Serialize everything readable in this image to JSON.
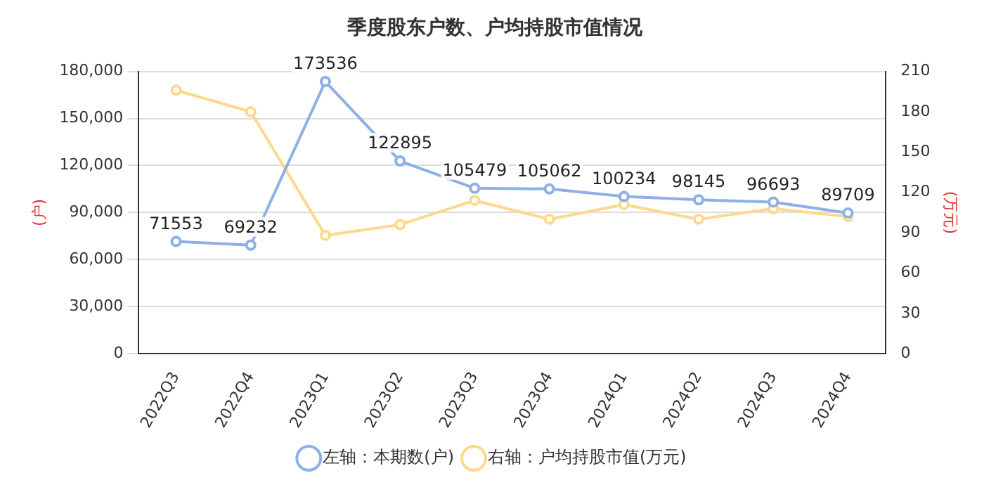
{
  "chart_data": {
    "type": "line",
    "title": "季度股东户数、户均持股市值情况",
    "categories": [
      "2022Q3",
      "2022Q4",
      "2023Q1",
      "2023Q2",
      "2023Q3",
      "2023Q4",
      "2024Q1",
      "2024Q2",
      "2024Q3",
      "2024Q4"
    ],
    "series": [
      {
        "name": "左轴：本期数(户)",
        "color": "#8eb0e6",
        "values": [
          71553,
          69232,
          173536,
          122895,
          105479,
          105062,
          100234,
          98145,
          96693,
          89709
        ],
        "value_labels": [
          "71553",
          "69232",
          "173536",
          "122895",
          "105479",
          "105062",
          "100234",
          "98145",
          "96693",
          "89709"
        ]
      },
      {
        "name": "右轴：户均持股市值(万元)",
        "color": "#fcd98c",
        "axis": "y2",
        "values": [
          196,
          180,
          88,
          96,
          114,
          100,
          111,
          100,
          108,
          102
        ]
      }
    ],
    "ylabel": "(户)",
    "y2label": "(万元)",
    "ylim": [
      0,
      180000
    ],
    "yticks": [
      0,
      {
        "value": 30000,
        "label": "30,000"
      },
      {
        "value": 60000,
        "label": "60,000"
      },
      {
        "value": 90000,
        "label": "90,000"
      },
      {
        "value": 120000,
        "label": "120,000"
      },
      {
        "value": 150000,
        "label": "150,000"
      },
      {
        "value": 180000,
        "label": "180,000"
      }
    ],
    "y2lim": [
      0,
      210
    ],
    "y2ticks": [
      0,
      30,
      60,
      90,
      120,
      150,
      180,
      210
    ],
    "grid": "y",
    "legend": "bottom",
    "marker": "circle",
    "line_style": "solid"
  }
}
